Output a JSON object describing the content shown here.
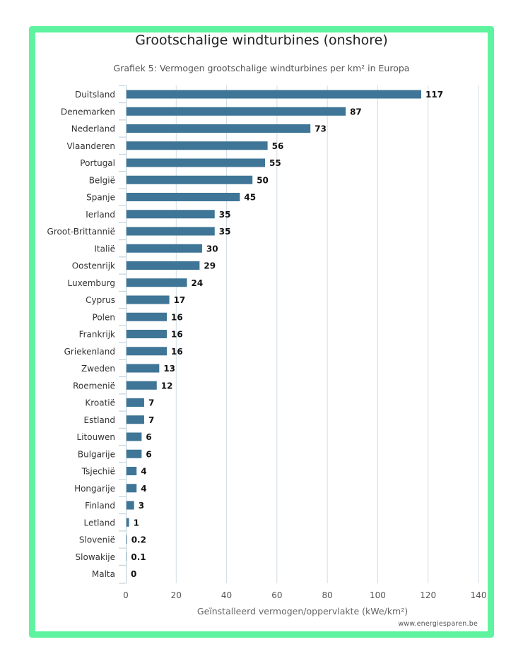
{
  "chart_data": {
    "type": "bar",
    "orientation": "horizontal",
    "title": "Grootschalige windturbines (onshore)",
    "subtitle": "Grafiek 5: Vermogen grootschalige windturbines per km² in Europa",
    "xlabel": "Geïnstalleerd vermogen/oppervlakte (kWe/km²)",
    "ylabel": "",
    "xlim": [
      0,
      140
    ],
    "xticks": [
      0,
      20,
      40,
      60,
      80,
      100,
      120,
      140
    ],
    "grid": true,
    "bar_color": "#3f7596",
    "categories": [
      "Duitsland",
      "Denemarken",
      "Nederland",
      "Vlaanderen",
      "Portugal",
      "België",
      "Spanje",
      "Ierland",
      "Groot-Brittannië",
      "Italië",
      "Oostenrijk",
      "Luxemburg",
      "Cyprus",
      "Polen",
      "Frankrijk",
      "Griekenland",
      "Zweden",
      "Roemenië",
      "Kroatië",
      "Estland",
      "Litouwen",
      "Bulgarije",
      "Tsjechië",
      "Hongarije",
      "Finland",
      "Letland",
      "Slovenië",
      "Slowakije",
      "Malta"
    ],
    "values": [
      117,
      87,
      73,
      56,
      55,
      50,
      45,
      35,
      35,
      30,
      29,
      24,
      17,
      16,
      16,
      16,
      13,
      12,
      7,
      7,
      6,
      6,
      4,
      4,
      3,
      1,
      0.2,
      0.1,
      0
    ],
    "data_labels": [
      "117",
      "87",
      "73",
      "56",
      "55",
      "50",
      "45",
      "35",
      "35",
      "30",
      "29",
      "24",
      "17",
      "16",
      "16",
      "16",
      "13",
      "12",
      "7",
      "7",
      "6",
      "6",
      "4",
      "4",
      "3",
      "1",
      "0.2",
      "0.1",
      "0"
    ]
  },
  "credit": "www.energiesparen.be",
  "frame_color": "#5ef49f"
}
